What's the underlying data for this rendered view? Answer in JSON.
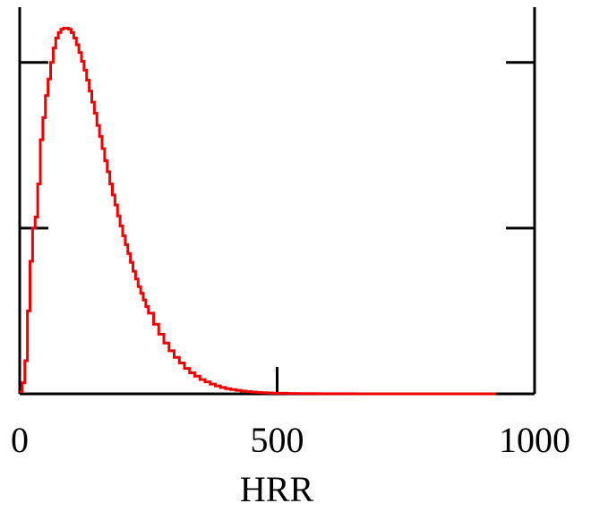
{
  "chart_data": {
    "type": "line",
    "xlabel": "HRR",
    "ylabel": "",
    "xlim": [
      0,
      1000
    ],
    "ylim": [
      0,
      0.0035
    ],
    "x_ticks": [
      0,
      500,
      1000
    ],
    "x_tick_labels": [
      "0",
      "500",
      "1000"
    ],
    "y_ticks": [
      0.0015,
      0.003
    ],
    "y_tick_labels_visible": false,
    "grid": false,
    "legend": "none",
    "series_color": "#ee0000",
    "series": [
      {
        "x": [
          0,
          5,
          10,
          15,
          20,
          25,
          30,
          35,
          40,
          45,
          50,
          55,
          60,
          65,
          70,
          75,
          80,
          85,
          90,
          95,
          100,
          105,
          110,
          115,
          120,
          125,
          130,
          135,
          140,
          145,
          150,
          155,
          160,
          165,
          170,
          175,
          180,
          185,
          190,
          195,
          200,
          205,
          210,
          215,
          220,
          225,
          230,
          235,
          240,
          245,
          250,
          260,
          270,
          280,
          290,
          300,
          310,
          320,
          330,
          340,
          350,
          360,
          370,
          380,
          390,
          400,
          410,
          420,
          430,
          440,
          450,
          460,
          470,
          480,
          490,
          500,
          520,
          540,
          560,
          580,
          600,
          650,
          700,
          750,
          800,
          850,
          900,
          925
        ],
        "y": [
          2e-05,
          0.0001,
          0.0003,
          0.00075,
          0.0012,
          0.0015,
          0.0016,
          0.0019,
          0.0023,
          0.0025,
          0.0027,
          0.00285,
          0.003,
          0.00313,
          0.00322,
          0.00327,
          0.0033,
          0.00331,
          0.00331,
          0.0033,
          0.00327,
          0.00322,
          0.00316,
          0.00309,
          0.00301,
          0.00293,
          0.00284,
          0.00274,
          0.00264,
          0.00254,
          0.00243,
          0.00233,
          0.00222,
          0.00211,
          0.00201,
          0.0019,
          0.0018,
          0.00171,
          0.00161,
          0.00152,
          0.00143,
          0.00135,
          0.00127,
          0.00119,
          0.00111,
          0.00104,
          0.00097,
          0.00091,
          0.00085,
          0.00079,
          0.00073,
          0.00063,
          0.00054,
          0.00046,
          0.00039,
          0.00033,
          0.00028,
          0.00023,
          0.00019,
          0.00016,
          0.00013,
          0.000108,
          8.8e-05,
          7.2e-05,
          5.8e-05,
          4.7e-05,
          3.8e-05,
          3.1e-05,
          2.5e-05,
          2e-05,
          1.6e-05,
          1.3e-05,
          1e-05,
          8e-06,
          6e-06,
          5e-06,
          3.5e-06,
          2.5e-06,
          1.8e-06,
          1.3e-06,
          1e-06,
          5e-07,
          2e-07,
          1e-07,
          5e-08,
          2e-08,
          1e-08,
          0.0
        ]
      }
    ]
  }
}
